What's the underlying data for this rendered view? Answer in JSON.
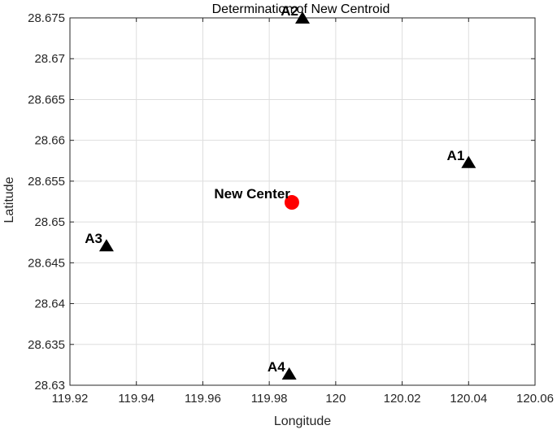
{
  "chart_data": {
    "type": "scatter",
    "title": "Determination of New Centroid",
    "xlabel": "Longitude",
    "ylabel": "Latitude",
    "xlim": [
      119.92,
      120.06
    ],
    "ylim": [
      28.63,
      28.675
    ],
    "x_ticks": [
      "119.92",
      "119.94",
      "119.96",
      "119.98",
      "120",
      "120.02",
      "120.04",
      "120.06"
    ],
    "y_ticks": [
      "28.63",
      "28.635",
      "28.64",
      "28.645",
      "28.65",
      "28.655",
      "28.66",
      "28.665",
      "28.67",
      "28.675"
    ],
    "grid": true,
    "series": [
      {
        "marker": "triangle",
        "color": "#000000",
        "points": [
          {
            "label": "A1",
            "x": 120.04,
            "y": 28.6573
          },
          {
            "label": "A2",
            "x": 119.99,
            "y": 28.675
          },
          {
            "label": "A3",
            "x": 119.931,
            "y": 28.6471
          },
          {
            "label": "A4",
            "x": 119.986,
            "y": 28.6314
          }
        ]
      },
      {
        "marker": "circle",
        "color": "#ff0000",
        "points": [
          {
            "label": "New Center",
            "x": 119.9868,
            "y": 28.6524
          }
        ]
      }
    ]
  }
}
